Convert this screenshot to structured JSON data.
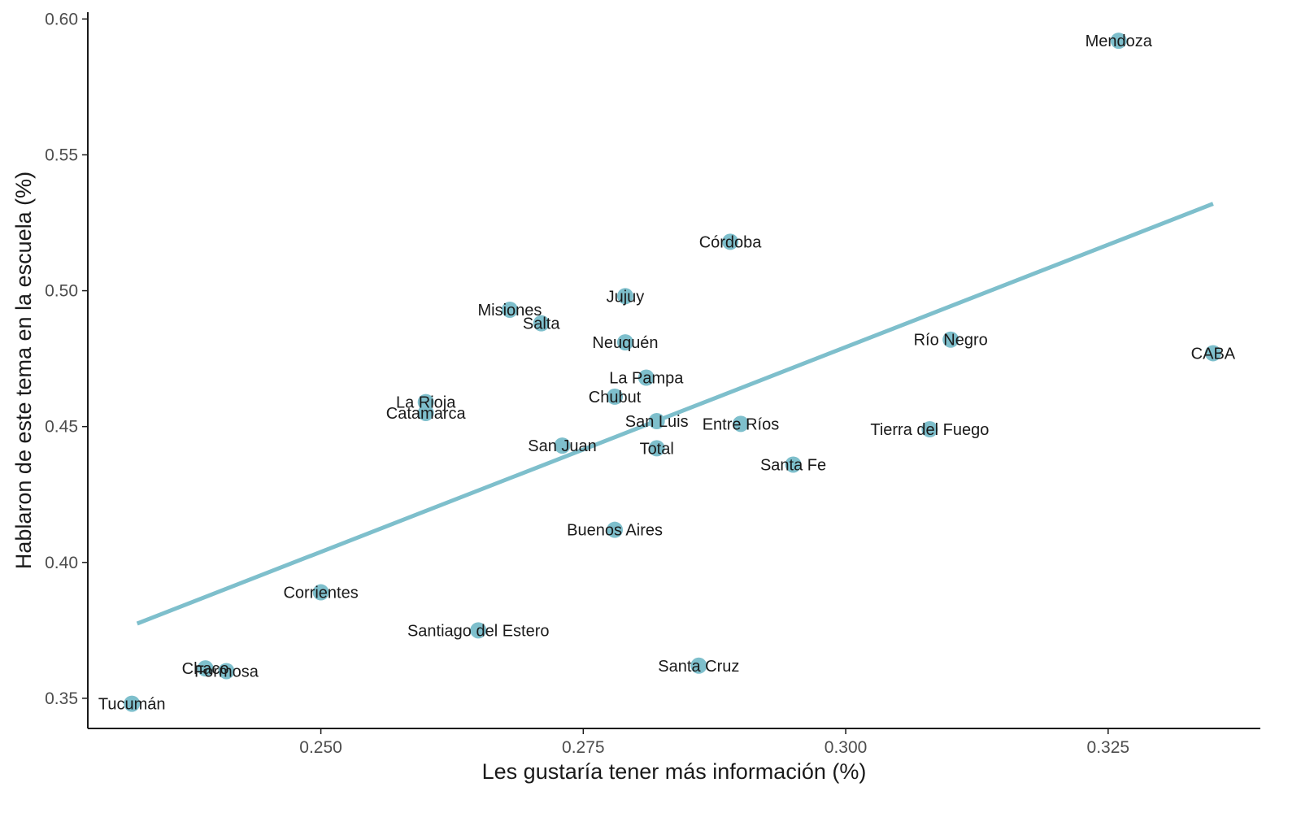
{
  "chart_data": {
    "type": "scatter",
    "xlabel": "Les gustaría tener más información (%)",
    "ylabel": "Hablaron de este tema en la escuela (%)",
    "xlim": [
      0.2278,
      0.3395
    ],
    "ylim": [
      0.3389,
      0.6025
    ],
    "x_ticks": [
      "0.250",
      "0.275",
      "0.300",
      "0.325"
    ],
    "y_ticks": [
      "0.35",
      "0.40",
      "0.45",
      "0.50",
      "0.55",
      "0.60"
    ],
    "grid": false,
    "point_color": "#7ebfcc",
    "line_color": "#7ebfcc",
    "trend_line": {
      "x": [
        0.2325,
        0.335
      ],
      "y": [
        0.3775,
        0.532
      ]
    },
    "points": [
      {
        "label": "Mendoza",
        "x": 0.326,
        "y": 0.592
      },
      {
        "label": "Córdoba",
        "x": 0.289,
        "y": 0.518
      },
      {
        "label": "Jujuy",
        "x": 0.279,
        "y": 0.498
      },
      {
        "label": "Misiones",
        "x": 0.268,
        "y": 0.493
      },
      {
        "label": "Salta",
        "x": 0.271,
        "y": 0.488
      },
      {
        "label": "Neuquén",
        "x": 0.279,
        "y": 0.481
      },
      {
        "label": "Río Negro",
        "x": 0.31,
        "y": 0.482
      },
      {
        "label": "CABA",
        "x": 0.335,
        "y": 0.477
      },
      {
        "label": "La Pampa",
        "x": 0.281,
        "y": 0.468
      },
      {
        "label": "Chubut",
        "x": 0.278,
        "y": 0.461
      },
      {
        "label": "La Rioja",
        "x": 0.26,
        "y": 0.459
      },
      {
        "label": "Catamarca",
        "x": 0.26,
        "y": 0.455
      },
      {
        "label": "San Luis",
        "x": 0.282,
        "y": 0.452
      },
      {
        "label": "Entre Ríos",
        "x": 0.29,
        "y": 0.451
      },
      {
        "label": "Tierra del Fuego",
        "x": 0.308,
        "y": 0.449
      },
      {
        "label": "San Juan",
        "x": 0.273,
        "y": 0.443
      },
      {
        "label": "Total",
        "x": 0.282,
        "y": 0.442
      },
      {
        "label": "Santa Fe",
        "x": 0.295,
        "y": 0.436
      },
      {
        "label": "Buenos Aires",
        "x": 0.278,
        "y": 0.412
      },
      {
        "label": "Corrientes",
        "x": 0.25,
        "y": 0.389
      },
      {
        "label": "Santiago del Estero",
        "x": 0.265,
        "y": 0.375
      },
      {
        "label": "Santa Cruz",
        "x": 0.286,
        "y": 0.362
      },
      {
        "label": "Chaco",
        "x": 0.239,
        "y": 0.361
      },
      {
        "label": "Formosa",
        "x": 0.241,
        "y": 0.36
      },
      {
        "label": "Tucumán",
        "x": 0.232,
        "y": 0.348
      }
    ]
  }
}
